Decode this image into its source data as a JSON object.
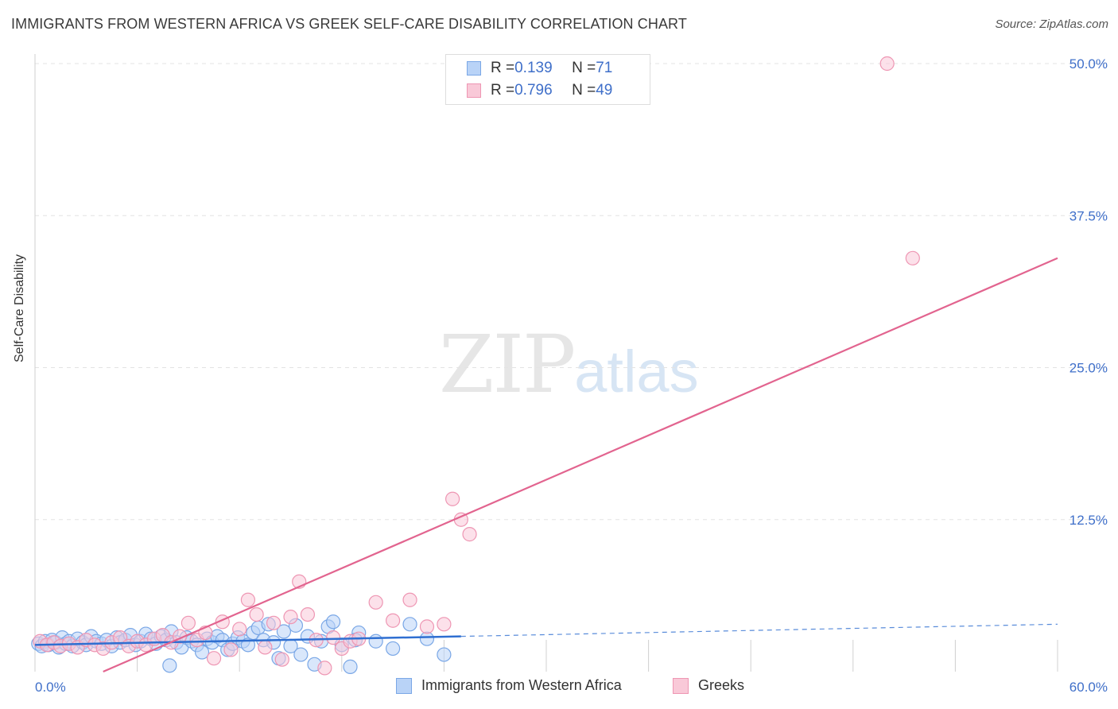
{
  "header": {
    "title": "IMMIGRANTS FROM WESTERN AFRICA VS GREEK SELF-CARE DISABILITY CORRELATION CHART",
    "source": "Source: ZipAtlas.com"
  },
  "watermark": {
    "zip": "ZIP",
    "atlas": "atlas"
  },
  "legend_top": [
    {
      "r_key": "R = ",
      "r_val": "0.139",
      "n_key": "N = ",
      "n_val": "71",
      "fill": "#b9d3f7",
      "stroke": "#7aa7e6"
    },
    {
      "r_key": "R = ",
      "r_val": "0.796",
      "n_key": "N = ",
      "n_val": "49",
      "fill": "#f9c9d8",
      "stroke": "#ee96b3"
    }
  ],
  "chart_data": {
    "type": "scatter",
    "title": "IMMIGRANTS FROM WESTERN AFRICA VS GREEK SELF-CARE DISABILITY CORRELATION CHART",
    "xlabel": "",
    "ylabel": "Self-Care Disability",
    "xlim": [
      0,
      60
    ],
    "ylim": [
      0,
      50
    ],
    "x_tick_labels": [
      "0.0%",
      "60.0%"
    ],
    "y_ticks": [
      12.5,
      25,
      37.5,
      50
    ],
    "y_tick_labels": [
      "12.5%",
      "25.0%",
      "37.5%",
      "50.0%"
    ],
    "grid": true,
    "series": [
      {
        "name": "Immigrants from Western Africa",
        "color": "#7aa7e6",
        "fill": "#b9d3f7",
        "line_color": "#2f6fd1",
        "trend": {
          "x": [
            0,
            25
          ],
          "y": [
            2.2,
            2.9
          ],
          "dashed_to": [
            60,
            3.9
          ]
        },
        "points": [
          [
            0.2,
            2.3
          ],
          [
            0.4,
            2.1
          ],
          [
            0.6,
            2.5
          ],
          [
            0.8,
            2.2
          ],
          [
            1.0,
            2.6
          ],
          [
            1.2,
            2.4
          ],
          [
            1.4,
            2.0
          ],
          [
            1.6,
            2.8
          ],
          [
            1.8,
            2.3
          ],
          [
            2.0,
            2.5
          ],
          [
            2.2,
            2.1
          ],
          [
            2.5,
            2.7
          ],
          [
            2.8,
            2.4
          ],
          [
            3.0,
            2.2
          ],
          [
            3.3,
            2.9
          ],
          [
            3.6,
            2.5
          ],
          [
            3.9,
            2.3
          ],
          [
            4.2,
            2.6
          ],
          [
            4.5,
            2.1
          ],
          [
            4.8,
            2.8
          ],
          [
            5.0,
            2.4
          ],
          [
            5.3,
            2.6
          ],
          [
            5.6,
            3.0
          ],
          [
            5.9,
            2.2
          ],
          [
            6.2,
            2.5
          ],
          [
            6.5,
            3.1
          ],
          [
            6.8,
            2.7
          ],
          [
            7.1,
            2.3
          ],
          [
            7.4,
            2.9
          ],
          [
            7.7,
            2.6
          ],
          [
            8.0,
            3.3
          ],
          [
            8.3,
            2.4
          ],
          [
            8.6,
            2.0
          ],
          [
            8.9,
            2.8
          ],
          [
            9.2,
            2.5
          ],
          [
            9.5,
            2.2
          ],
          [
            9.8,
            1.6
          ],
          [
            10.1,
            2.7
          ],
          [
            10.4,
            2.4
          ],
          [
            10.7,
            2.9
          ],
          [
            11.0,
            2.6
          ],
          [
            11.3,
            1.8
          ],
          [
            11.6,
            2.3
          ],
          [
            11.9,
            2.8
          ],
          [
            12.2,
            2.5
          ],
          [
            12.5,
            2.2
          ],
          [
            12.8,
            3.2
          ],
          [
            13.1,
            3.6
          ],
          [
            13.4,
            2.6
          ],
          [
            13.7,
            3.9
          ],
          [
            14.0,
            2.4
          ],
          [
            14.3,
            1.1
          ],
          [
            14.6,
            3.3
          ],
          [
            15.0,
            2.1
          ],
          [
            15.3,
            3.8
          ],
          [
            15.6,
            1.4
          ],
          [
            16.0,
            2.9
          ],
          [
            16.4,
            0.6
          ],
          [
            16.8,
            2.5
          ],
          [
            17.2,
            3.7
          ],
          [
            17.5,
            4.1
          ],
          [
            18.0,
            2.2
          ],
          [
            18.5,
            0.4
          ],
          [
            19.0,
            3.2
          ],
          [
            20.0,
            2.5
          ],
          [
            21.0,
            1.9
          ],
          [
            22.0,
            3.9
          ],
          [
            23.0,
            2.7
          ],
          [
            24.0,
            1.4
          ],
          [
            18.8,
            2.6
          ],
          [
            7.9,
            0.5
          ]
        ]
      },
      {
        "name": "Greeks",
        "color": "#ee96b3",
        "fill": "#f9c9d8",
        "line_color": "#e2648f",
        "trend": {
          "x": [
            4.0,
            60
          ],
          "y": [
            0,
            34.0
          ]
        },
        "points": [
          [
            0.3,
            2.5
          ],
          [
            0.7,
            2.2
          ],
          [
            1.1,
            2.4
          ],
          [
            1.5,
            2.1
          ],
          [
            2.0,
            2.3
          ],
          [
            2.5,
            2.0
          ],
          [
            3.0,
            2.6
          ],
          [
            3.5,
            2.2
          ],
          [
            4.0,
            1.9
          ],
          [
            4.5,
            2.4
          ],
          [
            5.0,
            2.8
          ],
          [
            5.5,
            2.1
          ],
          [
            6.0,
            2.5
          ],
          [
            6.5,
            2.2
          ],
          [
            7.0,
            2.7
          ],
          [
            7.5,
            3.0
          ],
          [
            8.0,
            2.4
          ],
          [
            8.5,
            2.9
          ],
          [
            9.0,
            4.0
          ],
          [
            9.5,
            2.6
          ],
          [
            10.0,
            3.2
          ],
          [
            10.5,
            1.1
          ],
          [
            11.0,
            4.1
          ],
          [
            11.5,
            1.8
          ],
          [
            12.0,
            3.5
          ],
          [
            12.5,
            5.9
          ],
          [
            13.0,
            4.7
          ],
          [
            13.5,
            2.0
          ],
          [
            14.0,
            4.0
          ],
          [
            14.5,
            1.0
          ],
          [
            15.0,
            4.5
          ],
          [
            15.5,
            7.4
          ],
          [
            16.0,
            4.7
          ],
          [
            16.5,
            2.6
          ],
          [
            17.0,
            0.3
          ],
          [
            17.5,
            2.8
          ],
          [
            18.0,
            1.9
          ],
          [
            18.5,
            2.5
          ],
          [
            19.0,
            2.7
          ],
          [
            20.0,
            5.7
          ],
          [
            21.0,
            4.2
          ],
          [
            22.0,
            5.9
          ],
          [
            23.0,
            3.7
          ],
          [
            24.0,
            3.9
          ],
          [
            24.5,
            14.2
          ],
          [
            25.0,
            12.5
          ],
          [
            25.5,
            11.3
          ],
          [
            50.0,
            50.0
          ],
          [
            51.5,
            34.0
          ]
        ]
      }
    ]
  },
  "legend_bottom": [
    {
      "label": "Immigrants from Western Africa",
      "fill": "#b9d3f7",
      "stroke": "#7aa7e6"
    },
    {
      "label": "Greeks",
      "fill": "#f9c9d8",
      "stroke": "#ee96b3"
    }
  ]
}
